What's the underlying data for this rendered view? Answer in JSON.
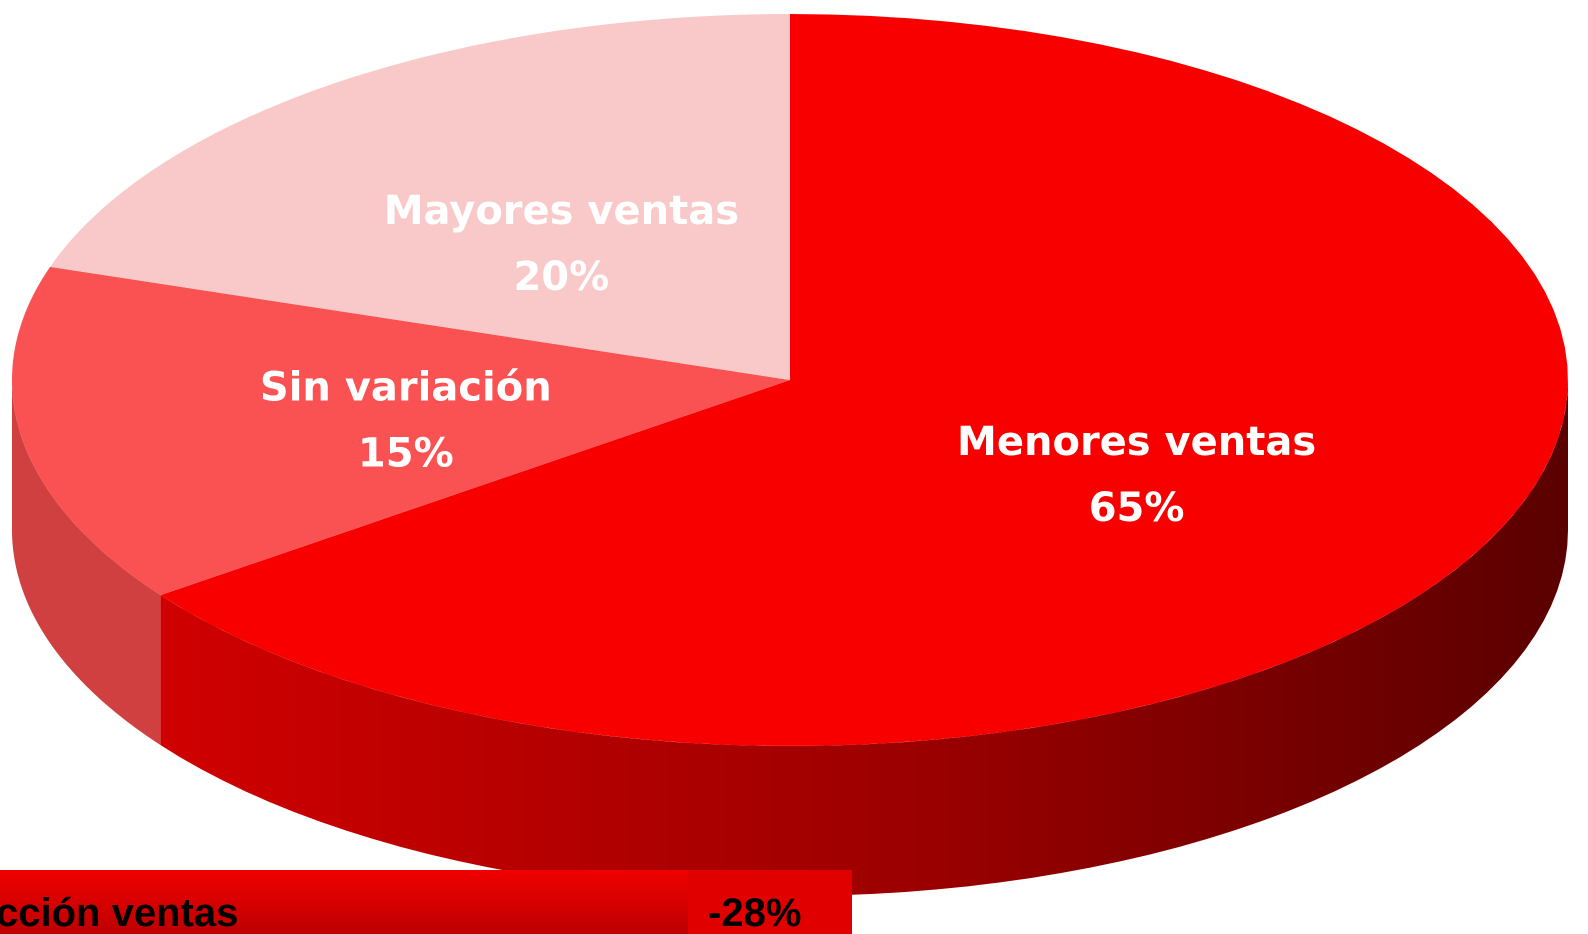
{
  "chart_data": {
    "type": "pie",
    "categories": [
      "Menores ventas",
      "Sin variación",
      "Mayores ventas"
    ],
    "values": [
      65,
      15,
      20
    ],
    "value_labels": [
      "65%",
      "15%",
      "20%"
    ],
    "colors": [
      "#f80000",
      "#fa5252",
      "#f9c8c8"
    ],
    "footer_label": "cción ventas",
    "footer_value": "-28%"
  }
}
